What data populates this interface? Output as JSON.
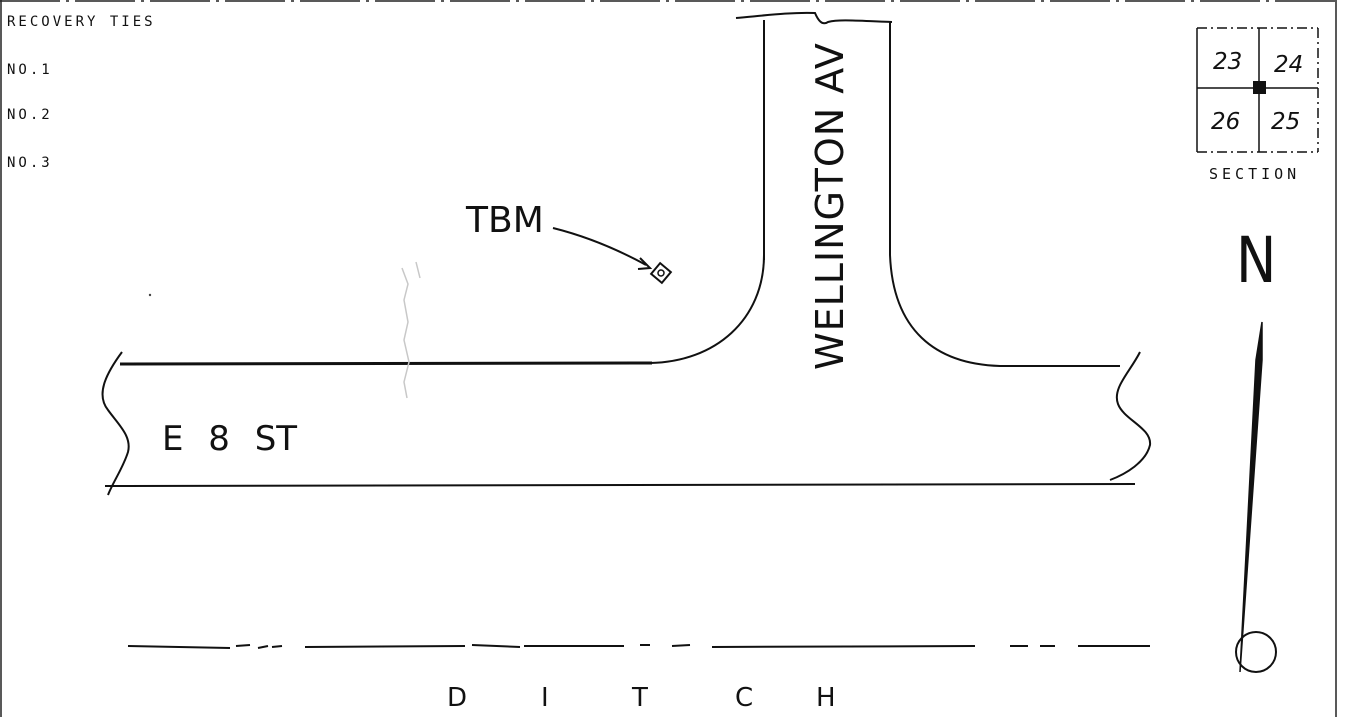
{
  "header": {
    "title": "RECOVERY TIES",
    "ties": [
      "NO.1",
      "NO.2",
      "NO.3"
    ]
  },
  "streets": {
    "avenue": "WELLINGTON AV",
    "street": "E 8 ST"
  },
  "benchmark_label": "TBM",
  "ditch": {
    "letters": [
      "D",
      "I",
      "T",
      "C",
      "H"
    ]
  },
  "section_key": {
    "label": "SECTION",
    "numbers": [
      "23",
      "24",
      "26",
      "25"
    ]
  },
  "north_arrow": {
    "label": "N"
  }
}
